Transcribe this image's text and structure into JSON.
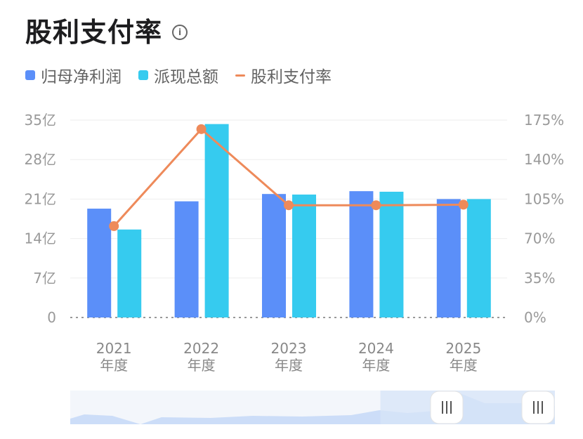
{
  "title": "股利支付率",
  "info_icon": "info-icon",
  "colors": {
    "net_profit": "#5B8FF9",
    "dividend": "#36CBEF",
    "payout": "#EE8A5A"
  },
  "chart_data": {
    "type": "bar",
    "categories": [
      "2021年度",
      "2022年度",
      "2023年度",
      "2024年度",
      "2025年度"
    ],
    "category_lines": [
      [
        "2021",
        "年度"
      ],
      [
        "2022",
        "年度"
      ],
      [
        "2023",
        "年度"
      ],
      [
        "2024",
        "年度"
      ],
      [
        "2025",
        "年度"
      ]
    ],
    "series": [
      {
        "name": "归母净利润",
        "type": "bar",
        "axis": "left",
        "values": [
          19.3,
          20.6,
          21.9,
          22.4,
          21.0
        ]
      },
      {
        "name": "派现总额",
        "type": "bar",
        "axis": "left",
        "values": [
          15.6,
          34.3,
          21.8,
          22.3,
          21.0
        ]
      },
      {
        "name": "股利支付率",
        "type": "line",
        "axis": "right",
        "values": [
          81,
          167,
          99.5,
          99.5,
          100
        ]
      }
    ],
    "y_left": {
      "min": 0,
      "max": 35,
      "ticks": [
        "0",
        "7亿",
        "14亿",
        "21亿",
        "28亿",
        "35亿"
      ]
    },
    "y_right": {
      "min": 0,
      "max": 175,
      "ticks": [
        "0%",
        "35%",
        "70%",
        "105%",
        "140%",
        "175%"
      ]
    },
    "legend": "top-left",
    "grid": true
  },
  "data_zoom": {
    "handle_left": "grip-icon",
    "handle_right": "grip-icon",
    "window_start": 0.64,
    "window_end": 1.0
  }
}
